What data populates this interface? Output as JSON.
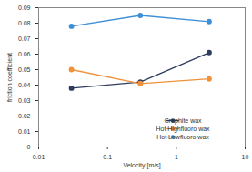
{
  "chart_data": {
    "type": "line",
    "x_label": "Velocity [m/s]",
    "y_label": "friction coefficient",
    "x": [
      0.03,
      0.3,
      3
    ],
    "series": [
      {
        "name": "Graphite wax",
        "color": "#2f3c5e",
        "values": [
          0.038,
          0.042,
          0.061
        ]
      },
      {
        "name": "Hot Highfluoro wax",
        "color": "#f0913a",
        "values": [
          0.05,
          0.041,
          0.044
        ]
      },
      {
        "name": "Hot Lowfluoro wax",
        "color": "#3d8fd8",
        "values": [
          0.078,
          0.085,
          0.081
        ]
      }
    ],
    "log": "x",
    "xlim": [
      0.01,
      10
    ],
    "xticks": [
      0.01,
      0.1,
      1,
      10
    ],
    "ylim": [
      0,
      0.09
    ],
    "yticks": [
      0,
      0.01,
      0.02,
      0.03,
      0.04,
      0.05,
      0.06,
      0.07,
      0.08,
      0.09
    ],
    "grid": false,
    "marker": "circle",
    "legend": "lower right"
  }
}
